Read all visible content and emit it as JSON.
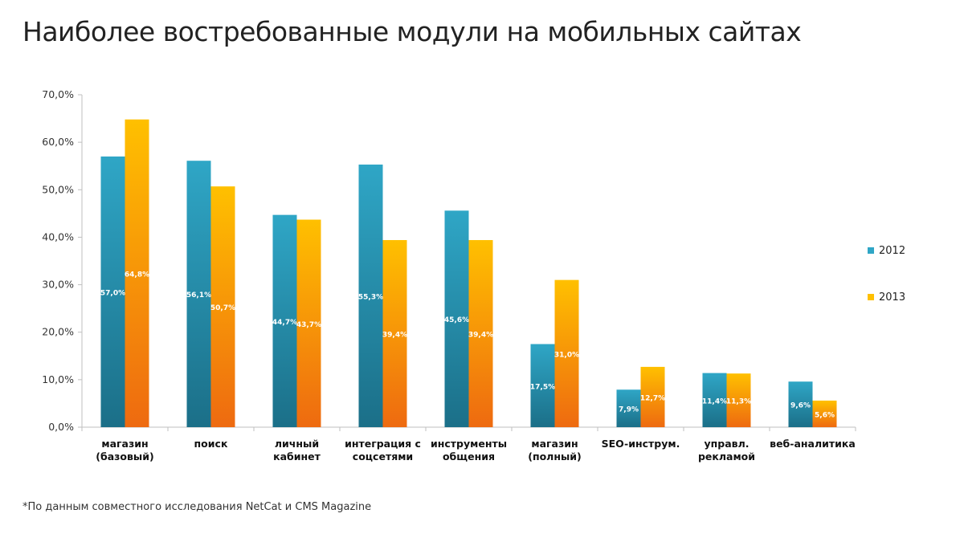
{
  "page": {
    "title": "Наиболее востребованные модули на мобильных сайтах",
    "footnote": "*По данным совместного исследования NetCat и CMS Magazine"
  },
  "colors": {
    "s2012_top": "#2fa6c6",
    "s2012_bottom": "#1b6f88",
    "s2013_top": "#ffc000",
    "s2013_bottom": "#ee6a10",
    "axis": "#bfbfbf"
  },
  "chart_data": {
    "type": "bar",
    "title": "Наиболее востребованные модули на мобильных сайтах",
    "xlabel": "",
    "ylabel": "",
    "ylim": [
      0,
      70
    ],
    "yticks": [
      "0,0%",
      "10,0%",
      "20,0%",
      "30,0%",
      "40,0%",
      "50,0%",
      "60,0%",
      "70,0%"
    ],
    "legend_position": "right",
    "categories": [
      [
        "магазин",
        "(базовый)"
      ],
      [
        "поиск"
      ],
      [
        "личный",
        "кабинет"
      ],
      [
        "интеграция с",
        "соцсетями"
      ],
      [
        "инструменты",
        "общения"
      ],
      [
        "магазин",
        "(полный)"
      ],
      [
        "SEO-инструм."
      ],
      [
        "управл.",
        "рекламой"
      ],
      [
        "веб-аналитика"
      ]
    ],
    "series": [
      {
        "name": "2012",
        "values": [
          57.0,
          56.1,
          44.7,
          55.3,
          45.6,
          17.5,
          7.9,
          11.4,
          9.6
        ],
        "labels": [
          "57,0%",
          "56,1%",
          "44,7%",
          "55,3%",
          "45,6%",
          "17,5%",
          "7,9%",
          "11,4%",
          "9,6%"
        ]
      },
      {
        "name": "2013",
        "values": [
          64.8,
          50.7,
          43.7,
          39.4,
          39.4,
          31.0,
          12.7,
          11.3,
          5.6
        ],
        "labels": [
          "64,8%",
          "50,7%",
          "43,7%",
          "39,4%",
          "39,4%",
          "31,0%",
          "12,7%",
          "11,3%",
          "5,6%"
        ]
      }
    ]
  }
}
